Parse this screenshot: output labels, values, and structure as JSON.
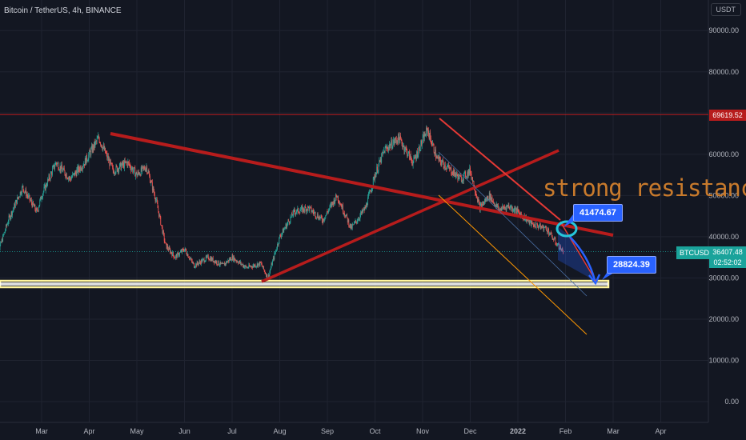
{
  "header": {
    "title": "Bitcoin / TetherUS, 4h, BINANCE"
  },
  "axis_unit": "USDT",
  "annotation": {
    "text": "strong resistance"
  },
  "price_tags": {
    "resistance_level": "69619.52",
    "symbol": "BTCUSDT",
    "current_price": "36407.48",
    "countdown": "02:52:02"
  },
  "callouts": {
    "upper": "41474.67",
    "lower": "28824.39"
  },
  "colors": {
    "background": "#131722",
    "trendline": "#b71c1c",
    "channel": "#ff9800",
    "support_fill": "#fff59d",
    "callout": "#2962ff",
    "candle_up": "#26a69a",
    "candle_down": "#ef5350"
  },
  "chart_data": {
    "type": "line",
    "title": "Bitcoin / TetherUS, 4h, BINANCE",
    "xlabel": "",
    "ylabel": "USDT",
    "ylim": [
      -8000,
      98000
    ],
    "y_ticks": [
      "0.00",
      "10000.00",
      "20000.00",
      "30000.00",
      "40000.00",
      "50000.00",
      "60000.00",
      "70000.00",
      "80000.00",
      "90000.00"
    ],
    "x_ticks": [
      "Mar",
      "Apr",
      "May",
      "Jun",
      "Jul",
      "Aug",
      "Sep",
      "Oct",
      "Nov",
      "Dec",
      "2022",
      "Feb",
      "Mar",
      "Apr"
    ],
    "x_tick_months": [
      2,
      3,
      4,
      5,
      6,
      7,
      8,
      9,
      10,
      11,
      12,
      13,
      14,
      15
    ],
    "grid": true,
    "series": [
      {
        "x": [
          1.0,
          1.3,
          1.6,
          1.9,
          2.0,
          2.3,
          2.6,
          2.9,
          3.2,
          3.5,
          3.8,
          4.0,
          4.2,
          4.4,
          4.6,
          4.8,
          5.0,
          5.2,
          5.5,
          5.8,
          6.0,
          6.3,
          6.6,
          6.75,
          7.0,
          7.3,
          7.6,
          7.9,
          8.2,
          8.5,
          8.8,
          9.0,
          9.2,
          9.5,
          9.8,
          10.1,
          10.3,
          10.5,
          10.8,
          11.0,
          11.2,
          11.4,
          11.6,
          11.8,
          12.0,
          12.3,
          12.6,
          12.8,
          12.95
        ],
        "y": [
          33000,
          44000,
          52000,
          46000,
          50000,
          58000,
          54000,
          58000,
          64000,
          56000,
          58000,
          55000,
          57000,
          49000,
          38000,
          35000,
          37000,
          33000,
          35000,
          33000,
          35000,
          32500,
          33500,
          30000,
          40000,
          46000,
          47000,
          44000,
          50000,
          42000,
          47000,
          55000,
          61000,
          64000,
          58000,
          66000,
          59000,
          57000,
          54000,
          56000,
          47000,
          50000,
          46500,
          47500,
          46000,
          43000,
          42000,
          38500,
          36400
        ]
      }
    ],
    "resistance_level": 69619.52,
    "current_price": 36407.48,
    "callout_values": [
      41474.67,
      28824.39
    ]
  }
}
